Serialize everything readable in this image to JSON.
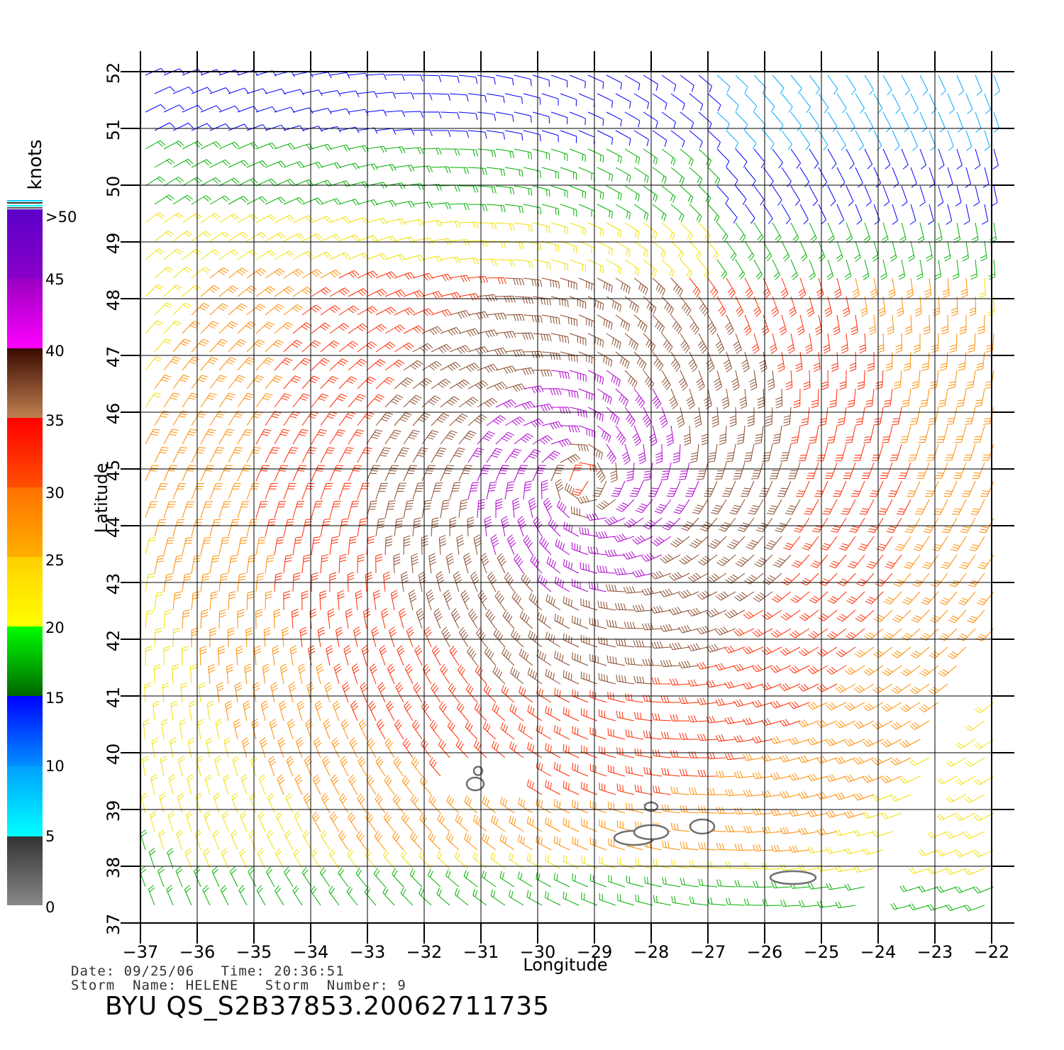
{
  "map": {
    "lon_min": -37,
    "lon_max": -22,
    "lat_min": 37,
    "lat_max": 52,
    "lon_ticks": [
      "−37",
      "−36",
      "−35",
      "−34",
      "−33",
      "−32",
      "−31",
      "−30",
      "−29",
      "−28",
      "−27",
      "−26",
      "−25",
      "−24",
      "−23",
      "−22"
    ],
    "lat_ticks": [
      "37",
      "38",
      "39",
      "40",
      "41",
      "42",
      "43",
      "44",
      "45",
      "46",
      "47",
      "48",
      "49",
      "50",
      "51",
      "52"
    ],
    "xlabel": "Longitude",
    "ylabel": "Latitude",
    "grid": true,
    "storm_center": {
      "lon": -29.2,
      "lat": 44.8
    },
    "islands": [
      {
        "name": "island-1",
        "lon": -31.1,
        "lat": 39.45
      },
      {
        "name": "island-2",
        "lon": -31.05,
        "lat": 39.68
      },
      {
        "name": "island-3",
        "lon": -28.0,
        "lat": 39.05
      },
      {
        "name": "island-4",
        "lon": -28.3,
        "lat": 38.5
      },
      {
        "name": "island-5",
        "lon": -28.0,
        "lat": 38.6
      },
      {
        "name": "island-6",
        "lon": -27.1,
        "lat": 38.7
      },
      {
        "name": "island-7",
        "lon": -25.5,
        "lat": 37.8
      }
    ]
  },
  "legend": {
    "unit_label": "knots",
    "ticks": [
      "0",
      "5",
      "10",
      "15",
      "20",
      "25",
      "30",
      "35",
      "40",
      "45",
      ">50"
    ],
    "colors": [
      "#777777",
      "#00ffff",
      "#0000ff",
      "#00cc00",
      "#ffff00",
      "#ff8c00",
      "#ff2a00",
      "#b87348",
      "#ff00ff",
      "#5a00c8"
    ]
  },
  "footer": {
    "date_label": "Date:",
    "date_value": "09/25/06",
    "time_label": "Time:",
    "time_value": "20:36:51",
    "storm_name_label": "Storm  Name:",
    "storm_name_value": "HELENE",
    "storm_number_label": "Storm  Number:",
    "storm_number_value": "9",
    "product_id": "BYU  QS_S2B37853.20062711735"
  }
}
